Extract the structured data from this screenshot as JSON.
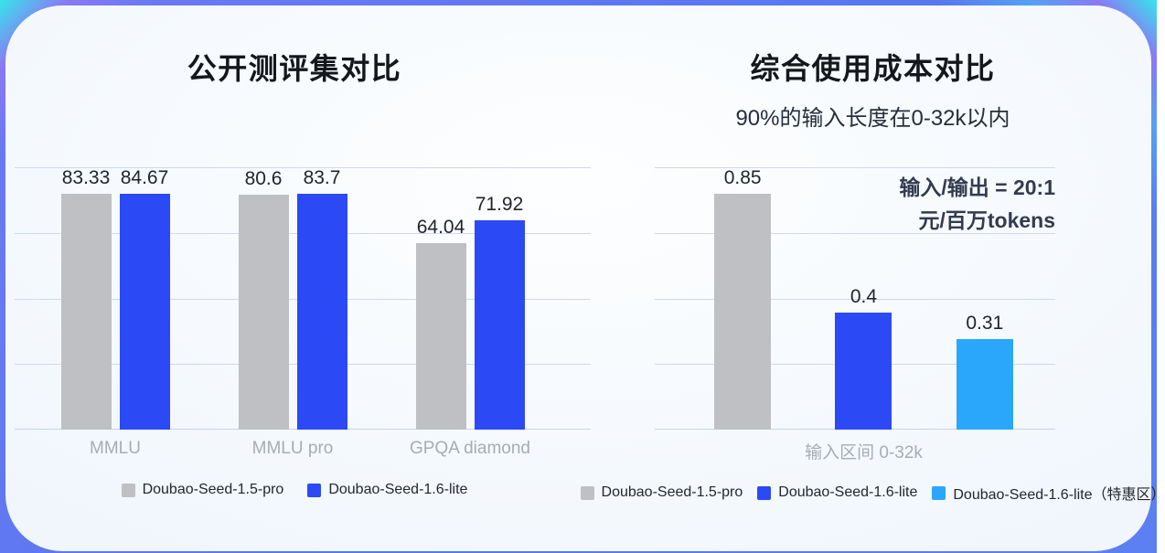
{
  "page": {
    "frame_gradient_colors": [
      "#35e7ec",
      "#8a79f3",
      "#5577ef"
    ],
    "card_bg_color": "#f3f8fd",
    "gridline_color": "#ccd9ee"
  },
  "chart_data": [
    {
      "type": "bar",
      "title": "公开测评集对比",
      "categories": [
        "MMLU",
        "MMLU pro",
        "GPQA diamond"
      ],
      "series": [
        {
          "name": "Doubao-Seed-1.5-pro",
          "color": "#bfc0c3",
          "values": [
            83.33,
            80.6,
            64.04
          ]
        },
        {
          "name": "Doubao-Seed-1.6-lite",
          "color": "#2b4af5",
          "values": [
            84.67,
            83.7,
            71.92
          ]
        }
      ],
      "ylim": [
        0,
        90
      ],
      "grid": true,
      "legend_position": "bottom"
    },
    {
      "type": "bar",
      "title": "综合使用成本对比",
      "subtitle": "90%的输入长度在0-32k以内",
      "annotation_lines": [
        "输入/输出 = 20:1",
        "元/百万tokens"
      ],
      "categories": [
        "输入区间 0-32k"
      ],
      "series": [
        {
          "name": "Doubao-Seed-1.5-pro",
          "color": "#bfc0c3",
          "values": [
            0.85
          ]
        },
        {
          "name": "Doubao-Seed-1.6-lite",
          "color": "#2b4af5",
          "values": [
            0.4
          ]
        },
        {
          "name": "Doubao-Seed-1.6-lite（特惠区）",
          "color": "#2aa7fa",
          "values": [
            0.31
          ]
        }
      ],
      "ylim": [
        0,
        0.9
      ],
      "grid": true,
      "legend_position": "bottom"
    }
  ]
}
